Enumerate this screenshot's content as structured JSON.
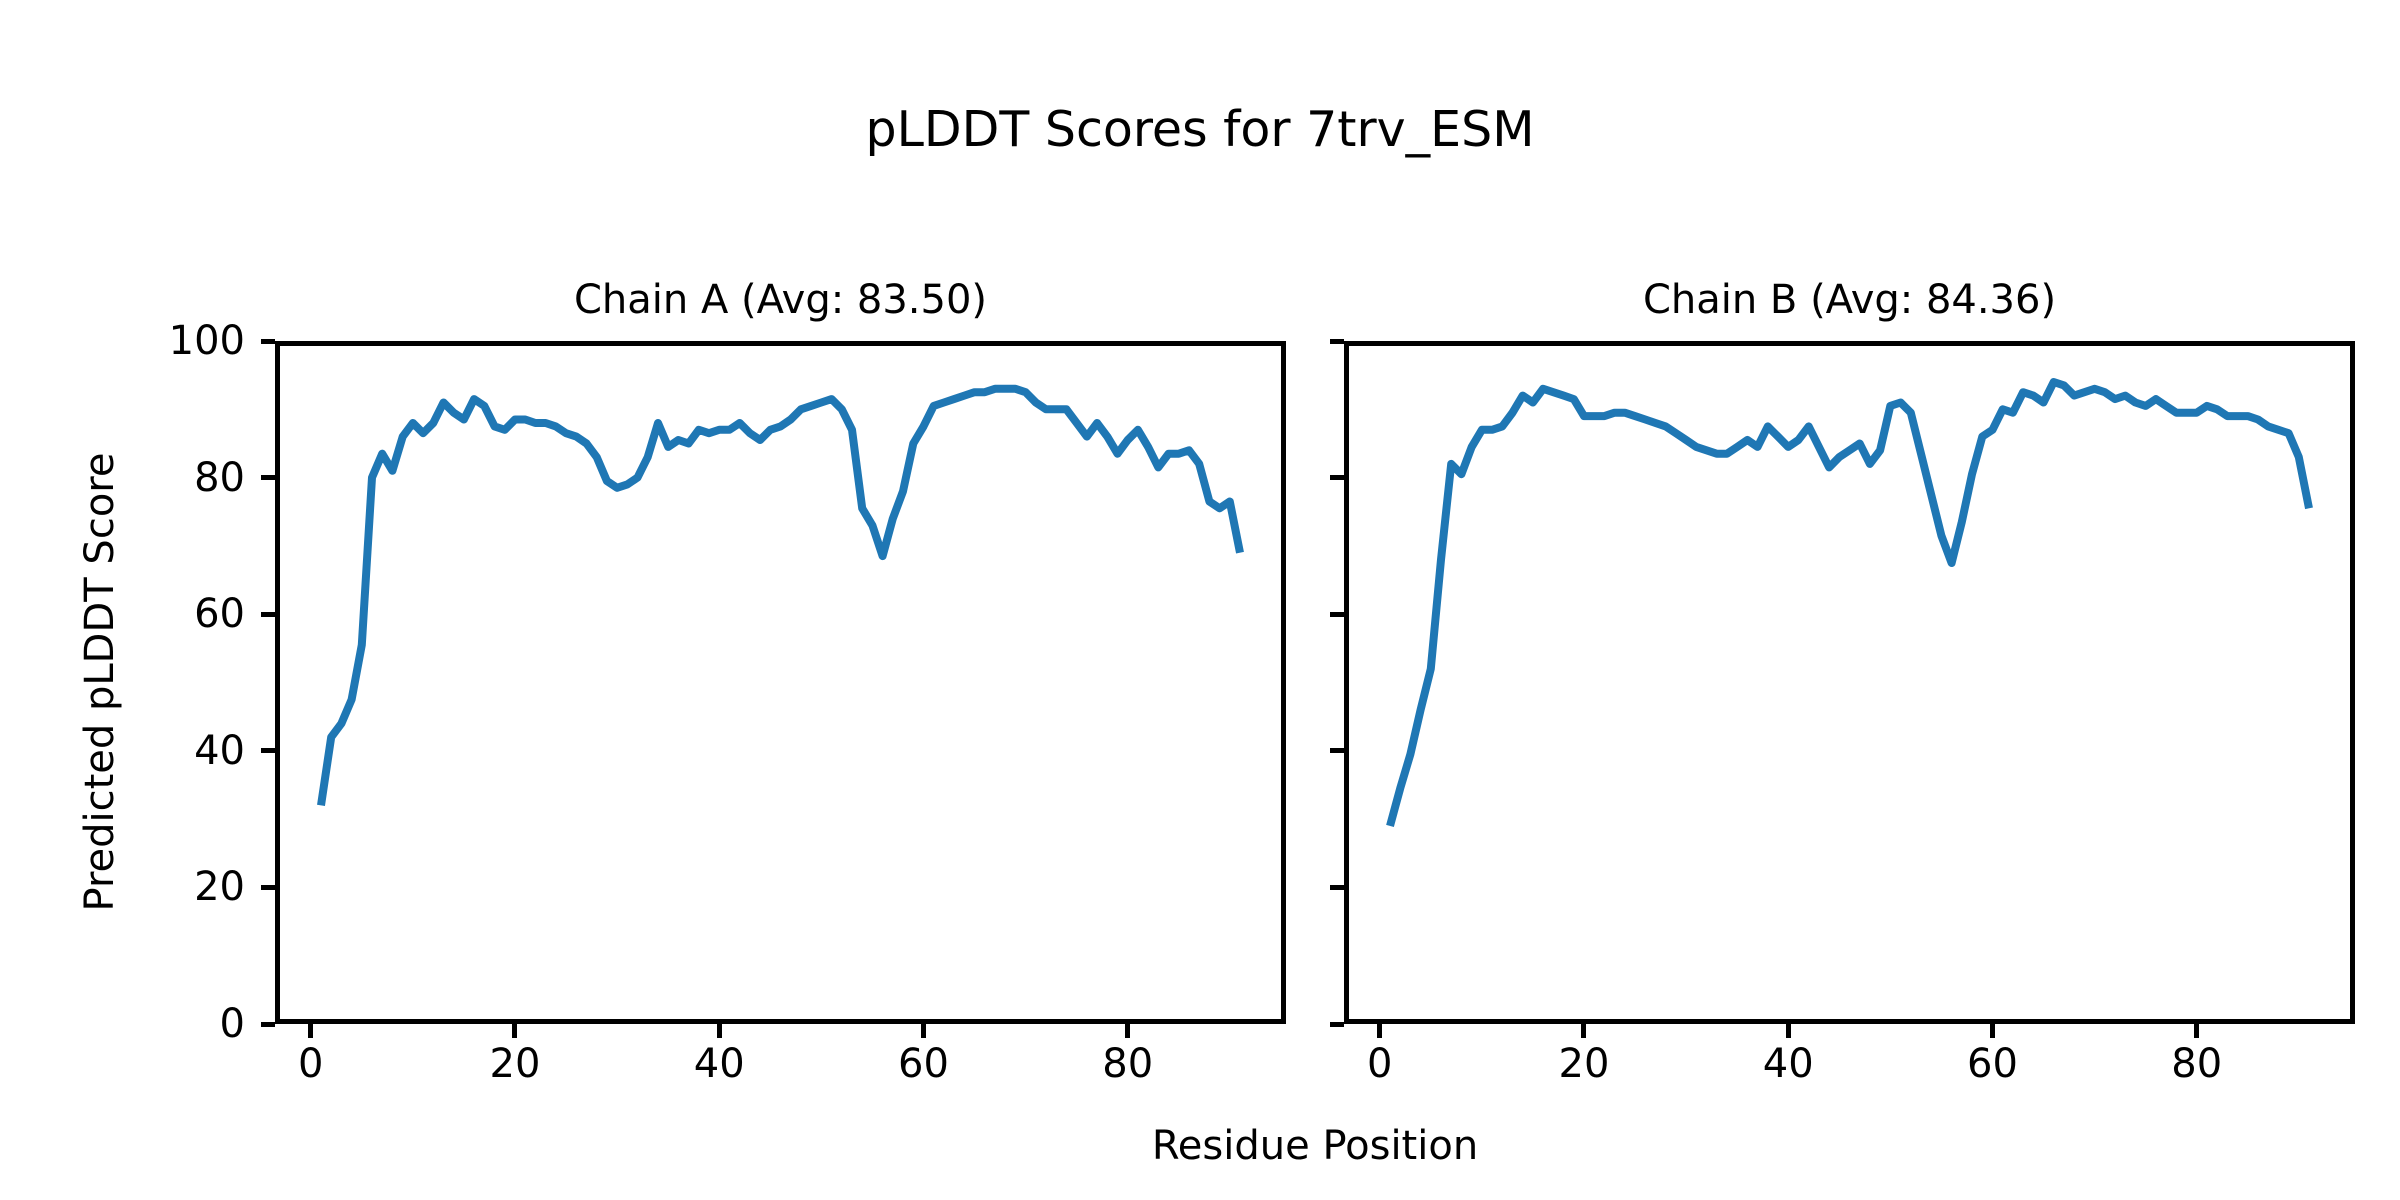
{
  "figure": {
    "title": "pLDDT Scores for 7trv_ESM",
    "background_color": "#ffffff",
    "text_color": "#000000"
  },
  "axes": {
    "xlabel": "Residue Position",
    "ylabel": "Predicted pLDDT Score",
    "xlim": [
      -3.5,
      95.5
    ],
    "ylim": [
      0,
      100
    ],
    "xticks": [
      0,
      20,
      40,
      60,
      80
    ],
    "yticks": [
      0,
      20,
      40,
      60,
      80,
      100
    ],
    "grid": false,
    "legend": "none",
    "line_color": "#1f77b4",
    "line_width": 8,
    "spine_color": "#000000",
    "spine_width": 5
  },
  "chart_data": [
    {
      "type": "line",
      "name": "Chain A",
      "title": "Chain A (Avg: 83.50)",
      "avg_label": "83.50",
      "x_start": 1,
      "x_step": 1,
      "values": [
        32,
        42,
        44,
        47.5,
        55.5,
        80,
        83.5,
        81,
        86,
        88,
        86.5,
        88,
        91,
        89.5,
        88.5,
        91.5,
        90.5,
        87.5,
        87,
        88.5,
        88.5,
        88,
        88,
        87.5,
        86.5,
        86,
        85,
        83,
        79.5,
        78.5,
        79,
        80,
        83,
        88,
        84.5,
        85.5,
        85,
        87,
        86.5,
        87,
        87,
        88,
        86.5,
        85.5,
        87,
        87.5,
        88.5,
        90,
        90.5,
        91,
        91.5,
        90,
        87,
        75.5,
        73,
        68.5,
        74,
        78,
        85,
        87.5,
        90.5,
        91,
        91.5,
        92,
        92.5,
        92.5,
        93,
        93,
        93,
        92.5,
        91,
        90,
        90,
        90,
        88,
        86,
        88,
        86,
        83.5,
        85.5,
        87,
        84.5,
        81.5,
        83.5,
        83.5,
        84,
        82,
        76.5,
        75.5,
        76.5,
        69
      ]
    },
    {
      "type": "line",
      "name": "Chain B",
      "title": "Chain B (Avg: 84.36)",
      "avg_label": "84.36",
      "x_start": 1,
      "x_step": 1,
      "values": [
        29,
        34.5,
        39.5,
        46,
        52,
        68,
        82,
        80.5,
        84.5,
        87,
        87,
        87.5,
        89.5,
        92,
        91,
        93,
        92.5,
        92,
        91.5,
        89,
        89,
        89,
        89.5,
        89.5,
        89,
        88.5,
        88,
        87.5,
        86.5,
        85.5,
        84.5,
        84,
        83.5,
        83.5,
        84.5,
        85.5,
        84.5,
        87.5,
        86,
        84.5,
        85.5,
        87.5,
        84.5,
        81.5,
        83,
        84,
        85,
        82,
        84,
        90.5,
        91,
        89.5,
        83.5,
        77.5,
        71.5,
        67.5,
        73.5,
        80.5,
        86,
        87,
        90,
        89.5,
        92.5,
        92,
        91,
        94,
        93.5,
        92,
        92.5,
        93,
        92.5,
        91.5,
        92,
        91,
        90.5,
        91.5,
        90.5,
        89.5,
        89.5,
        89.5,
        90.5,
        90,
        89,
        89,
        89,
        88.5,
        87.5,
        87,
        86.5,
        83,
        75.5
      ]
    }
  ]
}
